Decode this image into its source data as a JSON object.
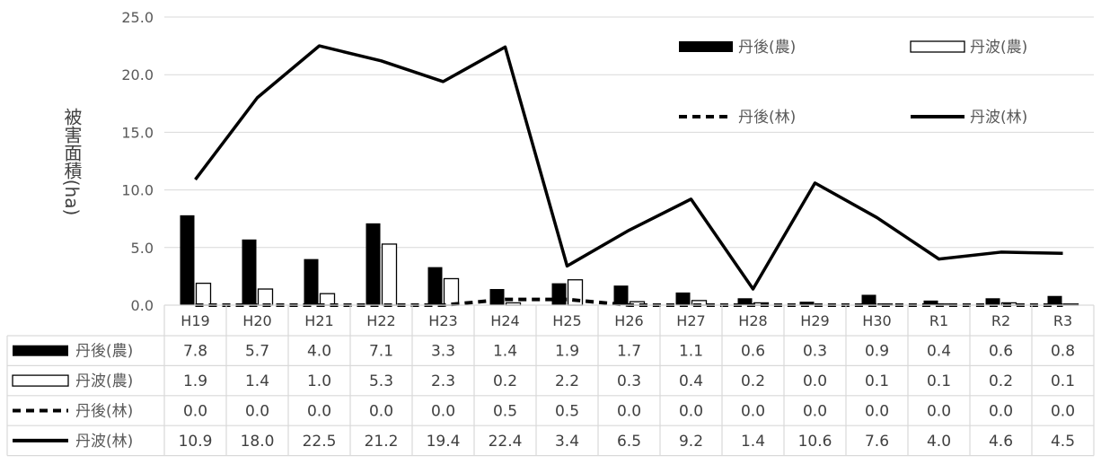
{
  "chart_data": {
    "type": "bar",
    "title": "",
    "ylabel": "被害面積(ha)",
    "ylim": [
      0,
      25
    ],
    "yticks": [
      "0.0",
      "5.0",
      "10.0",
      "15.0",
      "20.0",
      "25.0"
    ],
    "grid": true,
    "legend_position": "top-right",
    "categories": [
      "H19",
      "H20",
      "H21",
      "H22",
      "H23",
      "H24",
      "H25",
      "H26",
      "H27",
      "H28",
      "H29",
      "H30",
      "R1",
      "R2",
      "R3"
    ],
    "series": [
      {
        "name": "丹後(農)",
        "kind": "bar",
        "style": "solid-black",
        "values": [
          7.8,
          5.7,
          4.0,
          7.1,
          3.3,
          1.4,
          1.9,
          1.7,
          1.1,
          0.6,
          0.3,
          0.9,
          0.4,
          0.6,
          0.8
        ],
        "labels": [
          "7.8",
          "5.7",
          "4.0",
          "7.1",
          "3.3",
          "1.4",
          "1.9",
          "1.7",
          "1.1",
          "0.6",
          "0.3",
          "0.9",
          "0.4",
          "0.6",
          "0.8"
        ]
      },
      {
        "name": "丹波(農)",
        "kind": "bar",
        "style": "hollow",
        "values": [
          1.9,
          1.4,
          1.0,
          5.3,
          2.3,
          0.2,
          2.2,
          0.3,
          0.4,
          0.2,
          0.0,
          0.1,
          0.1,
          0.2,
          0.1
        ],
        "labels": [
          "1.9",
          "1.4",
          "1.0",
          "5.3",
          "2.3",
          "0.2",
          "2.2",
          "0.3",
          "0.4",
          "0.2",
          "0.0",
          "0.1",
          "0.1",
          "0.2",
          "0.1"
        ]
      },
      {
        "name": "丹後(林)",
        "kind": "line",
        "style": "dashed",
        "values": [
          0.0,
          0.0,
          0.0,
          0.0,
          0.0,
          0.5,
          0.5,
          0.0,
          0.0,
          0.0,
          0.0,
          0.0,
          0.0,
          0.0,
          0.0
        ],
        "labels": [
          "0.0",
          "0.0",
          "0.0",
          "0.0",
          "0.0",
          "0.5",
          "0.5",
          "0.0",
          "0.0",
          "0.0",
          "0.0",
          "0.0",
          "0.0",
          "0.0",
          "0.0"
        ]
      },
      {
        "name": "丹波(林)",
        "kind": "line",
        "style": "solid",
        "values": [
          10.9,
          18.0,
          22.5,
          21.2,
          19.4,
          22.4,
          3.4,
          6.5,
          9.2,
          1.4,
          10.6,
          7.6,
          4.0,
          4.6,
          4.5
        ],
        "labels": [
          "10.9",
          "18.0",
          "22.5",
          "21.2",
          "19.4",
          "22.4",
          "3.4",
          "6.5",
          "9.2",
          "1.4",
          "10.6",
          "7.6",
          "4.0",
          "4.6",
          "4.5"
        ]
      }
    ],
    "colors": {
      "bar_fill": "#000000",
      "hollow_fill": "#ffffff",
      "line": "#000000",
      "grid": "#d9d9d9",
      "table_border": "#d9d9d9"
    }
  }
}
